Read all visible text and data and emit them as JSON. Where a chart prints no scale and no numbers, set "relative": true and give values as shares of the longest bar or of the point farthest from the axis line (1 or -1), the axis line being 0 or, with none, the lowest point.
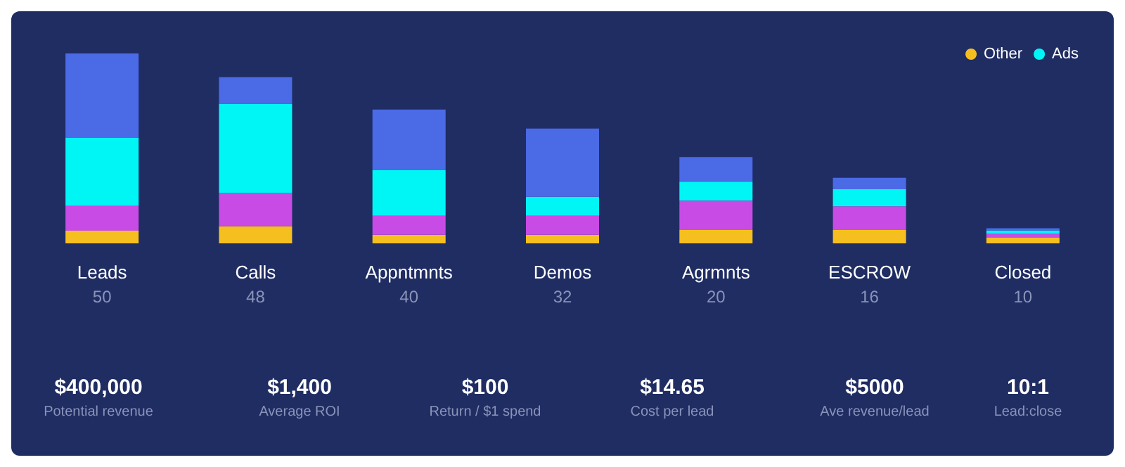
{
  "chart_data": {
    "type": "bar",
    "stacked": true,
    "relative": true,
    "legend": "top right",
    "categories": [
      "Leads",
      "Calls",
      "Appntmnts",
      "Demos",
      "Agrmnts",
      "ESCROW",
      "Closed"
    ],
    "series": [
      {
        "color": "#f5bf1f",
        "name": "Other",
        "values": [
          0.067,
          0.09,
          0.045,
          0.045,
          0.07,
          0.07,
          0.03
        ]
      },
      {
        "color": "#c84be6",
        "values": [
          0.13,
          0.175,
          0.1,
          0.1,
          0.155,
          0.125,
          0.02
        ]
      },
      {
        "color": "#00f5f5",
        "name": "Ads",
        "values": [
          0.36,
          0.47,
          0.24,
          0.1,
          0.1,
          0.09,
          0.018
        ]
      },
      {
        "color": "#4b6ae6",
        "values": [
          0.443,
          0.14,
          0.32,
          0.36,
          0.13,
          0.06,
          0.012
        ]
      }
    ],
    "annotations": [
      "50",
      "48",
      "40",
      "32",
      "20",
      "16",
      "10",
      "$400,000",
      "Potential revenue",
      "$1,400",
      "Average ROI",
      "$100",
      "Return / $1 spend",
      "$14.65",
      "Cost per lead",
      "$5000",
      "Ave revenue/lead",
      "10:1",
      "Lead:close"
    ]
  }
}
